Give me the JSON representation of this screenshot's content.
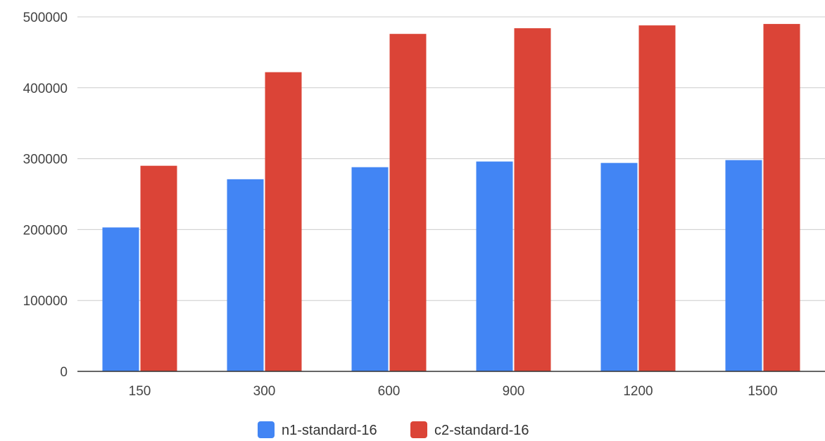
{
  "chart_data": {
    "type": "bar",
    "categories": [
      "150",
      "300",
      "600",
      "900",
      "1200",
      "1500"
    ],
    "series": [
      {
        "name": "n1-standard-16",
        "color": "#4285f4",
        "values": [
          203000,
          271000,
          288000,
          296000,
          294000,
          298000
        ]
      },
      {
        "name": "c2-standard-16",
        "color": "#db4437",
        "values": [
          290000,
          422000,
          476000,
          484000,
          488000,
          490000
        ]
      }
    ],
    "yticks": [
      "0",
      "100000",
      "200000",
      "300000",
      "400000",
      "500000"
    ],
    "ylim": [
      0,
      500000
    ],
    "grid": true,
    "legend": "bottom"
  }
}
